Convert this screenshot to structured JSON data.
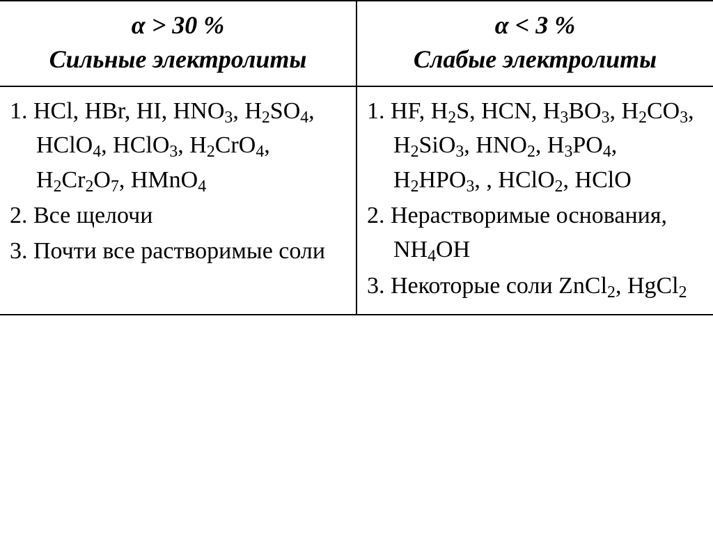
{
  "table": {
    "border_color": "#000000",
    "background_color": "#ffffff",
    "text_color": "#000000",
    "font_family": "Times New Roman",
    "columns": [
      {
        "header_line1_html": "&alpha; &gt; 30 %",
        "header_line2": "Сильные электролиты",
        "header_fontsize_pt": 27,
        "header_font_style": "bold italic",
        "rows": [
          {
            "n": "1.",
            "html": "HCl, HBr, HI, HNO<sub>3</sub>, H<sub>2</sub>SO<sub>4</sub>, HClO<sub>4</sub>, HClO<sub>3</sub>, H<sub>2</sub>CrO<sub>4</sub>, H<sub>2</sub>Cr<sub>2</sub>O<sub>7</sub>, HMnO<sub>4</sub>"
          },
          {
            "n": "2.",
            "html": "Все щелочи"
          },
          {
            "n": "3.",
            "html": "Почти все растворимые соли"
          }
        ],
        "body_fontsize_pt": 26
      },
      {
        "header_line1_html": "&alpha; &lt; 3 %",
        "header_line2": "Слабые электролиты",
        "header_fontsize_pt": 27,
        "header_font_style": "bold italic",
        "rows": [
          {
            "n": "1.",
            "html": "HF, H<sub>2</sub>S, HCN, H<sub>3</sub>BO<sub>3</sub>, H<sub>2</sub>CO<sub>3</sub>, H<sub>2</sub>SiO<sub>3</sub>, HNO<sub>2</sub>, H<sub>3</sub>PO<sub>4</sub>, H<sub>2</sub>HPO<sub>3</sub>, , HClO<sub>2</sub>, HClO"
          },
          {
            "n": "2.",
            "html": "Нерастворимые основания, NH<sub>4</sub>OH"
          },
          {
            "n": "3.",
            "html": "Некоторые соли ZnCl<sub>2</sub>, HgCl<sub>2</sub>"
          }
        ],
        "body_fontsize_pt": 26
      }
    ]
  }
}
